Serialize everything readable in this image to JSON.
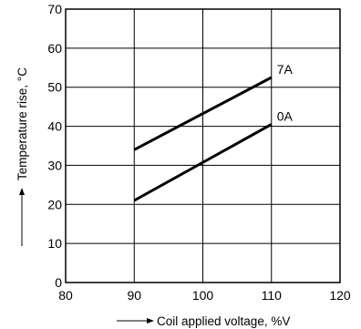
{
  "chart_data": {
    "type": "line",
    "xlabel": "Coil applied voltage, %V",
    "ylabel": "Temperature rise, °C",
    "xlim": [
      80,
      120
    ],
    "ylim": [
      0,
      70
    ],
    "xticks": [
      "80",
      "90",
      "100",
      "110",
      "120"
    ],
    "yticks": [
      "0",
      "10",
      "20",
      "30",
      "40",
      "50",
      "60",
      "70"
    ],
    "grid": true,
    "series": [
      {
        "name": "7A",
        "x": [
          90,
          110
        ],
        "values": [
          34,
          52.5
        ]
      },
      {
        "name": "0A",
        "x": [
          90,
          110
        ],
        "values": [
          21,
          40.5
        ]
      }
    ]
  }
}
